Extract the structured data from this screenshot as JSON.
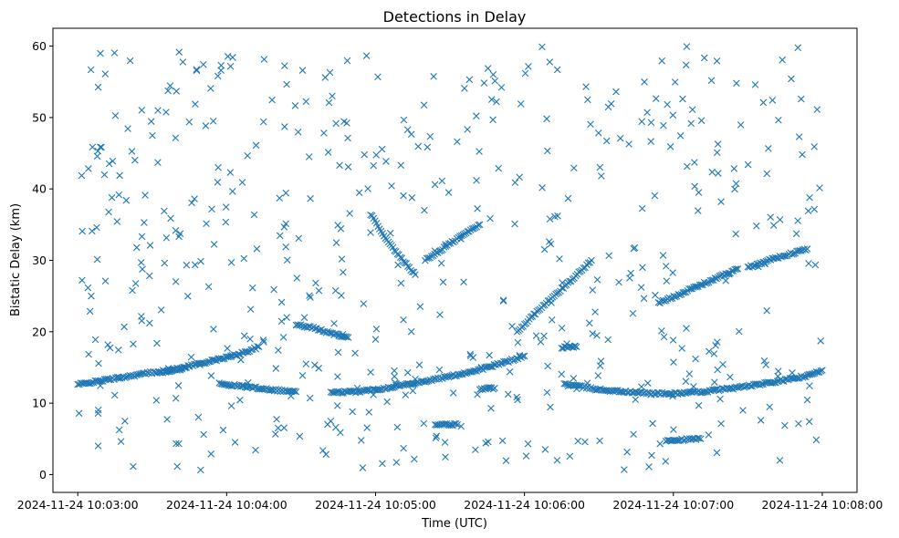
{
  "chart_data": {
    "type": "scatter",
    "title": "Detections in Delay",
    "xlabel": "Time (UTC)",
    "ylabel": "Bistatic Delay (km)",
    "marker": "x",
    "color": "#1f77b4",
    "grid": false,
    "legend": "none",
    "x_type": "datetime",
    "xlim": [
      "2024-11-24 10:02:50",
      "2024-11-24 10:08:14"
    ],
    "ylim": [
      -2.5,
      62.5
    ],
    "x_ticks": [
      "2024-11-24 10:03:00",
      "2024-11-24 10:04:00",
      "2024-11-24 10:05:00",
      "2024-11-24 10:06:00",
      "2024-11-24 10:07:00",
      "2024-11-24 10:08:00"
    ],
    "y_ticks": [
      0,
      10,
      20,
      30,
      40,
      50,
      60
    ],
    "tracks": [
      {
        "name": "",
        "times": [
          "2024-11-24 10:03:00",
          "2024-11-24 10:03:07",
          "2024-11-24 10:03:14",
          "2024-11-24 10:03:21",
          "2024-11-24 10:03:28",
          "2024-11-24 10:03:35",
          "2024-11-24 10:03:42"
        ],
        "delays": [
          12.6,
          13.0,
          13.4,
          13.8,
          14.2,
          14.5,
          14.8
        ]
      },
      {
        "name": "",
        "times": [
          "2024-11-24 10:03:33",
          "2024-11-24 10:03:40",
          "2024-11-24 10:03:47",
          "2024-11-24 10:03:54",
          "2024-11-24 10:04:01",
          "2024-11-24 10:04:08",
          "2024-11-24 10:04:13"
        ],
        "delays": [
          14.2,
          14.8,
          15.4,
          15.9,
          16.5,
          17.2,
          17.9
        ]
      },
      {
        "name": "",
        "times": [
          "2024-11-24 10:03:57",
          "2024-11-24 10:04:05",
          "2024-11-24 10:04:13",
          "2024-11-24 10:04:21",
          "2024-11-24 10:04:28"
        ],
        "delays": [
          12.7,
          12.4,
          12.1,
          11.8,
          11.6
        ]
      },
      {
        "name": "",
        "times": [
          "2024-11-24 10:04:42",
          "2024-11-24 10:04:52",
          "2024-11-24 10:05:02",
          "2024-11-24 10:05:12",
          "2024-11-24 10:05:22",
          "2024-11-24 10:05:32",
          "2024-11-24 10:05:42",
          "2024-11-24 10:05:51",
          "2024-11-24 10:06:00"
        ],
        "delays": [
          11.5,
          11.6,
          12.0,
          12.6,
          13.2,
          13.9,
          14.7,
          15.6,
          16.6
        ]
      },
      {
        "name": "",
        "times": [
          "2024-11-24 10:06:16",
          "2024-11-24 10:06:30",
          "2024-11-24 10:06:44",
          "2024-11-24 10:06:58",
          "2024-11-24 10:07:12",
          "2024-11-24 10:07:26",
          "2024-11-24 10:07:40",
          "2024-11-24 10:07:54",
          "2024-11-24 10:08:00"
        ],
        "delays": [
          12.7,
          11.9,
          11.5,
          11.3,
          11.6,
          12.2,
          12.9,
          13.8,
          14.6
        ]
      },
      {
        "name": "",
        "times": [
          "2024-11-24 10:06:57",
          "2024-11-24 10:07:04",
          "2024-11-24 10:07:11"
        ],
        "delays": [
          4.8,
          4.9,
          5.0
        ]
      },
      {
        "name": "",
        "times": [
          "2024-11-24 10:05:24",
          "2024-11-24 10:05:28",
          "2024-11-24 10:05:33"
        ],
        "delays": [
          6.9,
          7.0,
          7.0
        ]
      },
      {
        "name": "",
        "times": [
          "2024-11-24 10:05:42",
          "2024-11-24 10:05:45",
          "2024-11-24 10:05:48"
        ],
        "delays": [
          12.0,
          12.1,
          12.1
        ]
      },
      {
        "name": "",
        "times": [
          "2024-11-24 10:06:15",
          "2024-11-24 10:06:18",
          "2024-11-24 10:06:21"
        ],
        "delays": [
          17.8,
          17.8,
          17.9
        ]
      },
      {
        "name": "",
        "times": [
          "2024-11-24 10:04:58",
          "2024-11-24 10:05:04",
          "2024-11-24 10:05:10",
          "2024-11-24 10:05:16"
        ],
        "delays": [
          36.5,
          33.0,
          30.4,
          28.0
        ]
      },
      {
        "name": "",
        "times": [
          "2024-11-24 10:05:20",
          "2024-11-24 10:05:27",
          "2024-11-24 10:05:34",
          "2024-11-24 10:05:42"
        ],
        "delays": [
          30.0,
          31.6,
          33.3,
          35.0
        ]
      },
      {
        "name": "",
        "times": [
          "2024-11-24 10:05:57",
          "2024-11-24 10:06:05",
          "2024-11-24 10:06:12",
          "2024-11-24 10:06:20",
          "2024-11-24 10:06:27"
        ],
        "delays": [
          20.0,
          22.8,
          25.0,
          27.6,
          30.0
        ]
      },
      {
        "name": "",
        "times": [
          "2024-11-24 10:06:54",
          "2024-11-24 10:07:02",
          "2024-11-24 10:07:10",
          "2024-11-24 10:07:18",
          "2024-11-24 10:07:26"
        ],
        "delays": [
          24.0,
          25.2,
          26.4,
          27.6,
          28.8
        ]
      },
      {
        "name": "",
        "times": [
          "2024-11-24 10:04:28",
          "2024-11-24 10:04:35",
          "2024-11-24 10:04:42",
          "2024-11-24 10:04:49"
        ],
        "delays": [
          21.0,
          20.5,
          19.8,
          19.2
        ]
      },
      {
        "name": "",
        "times": [
          "2024-11-24 10:07:30",
          "2024-11-24 10:07:38",
          "2024-11-24 10:07:46",
          "2024-11-24 10:07:54"
        ],
        "delays": [
          29.0,
          30.0,
          30.8,
          31.6
        ]
      }
    ],
    "clutter": {
      "count": 560,
      "delay_range": [
        0.5,
        60
      ],
      "time_range": [
        "2024-11-24 10:03:00",
        "2024-11-24 10:08:00"
      ]
    }
  }
}
